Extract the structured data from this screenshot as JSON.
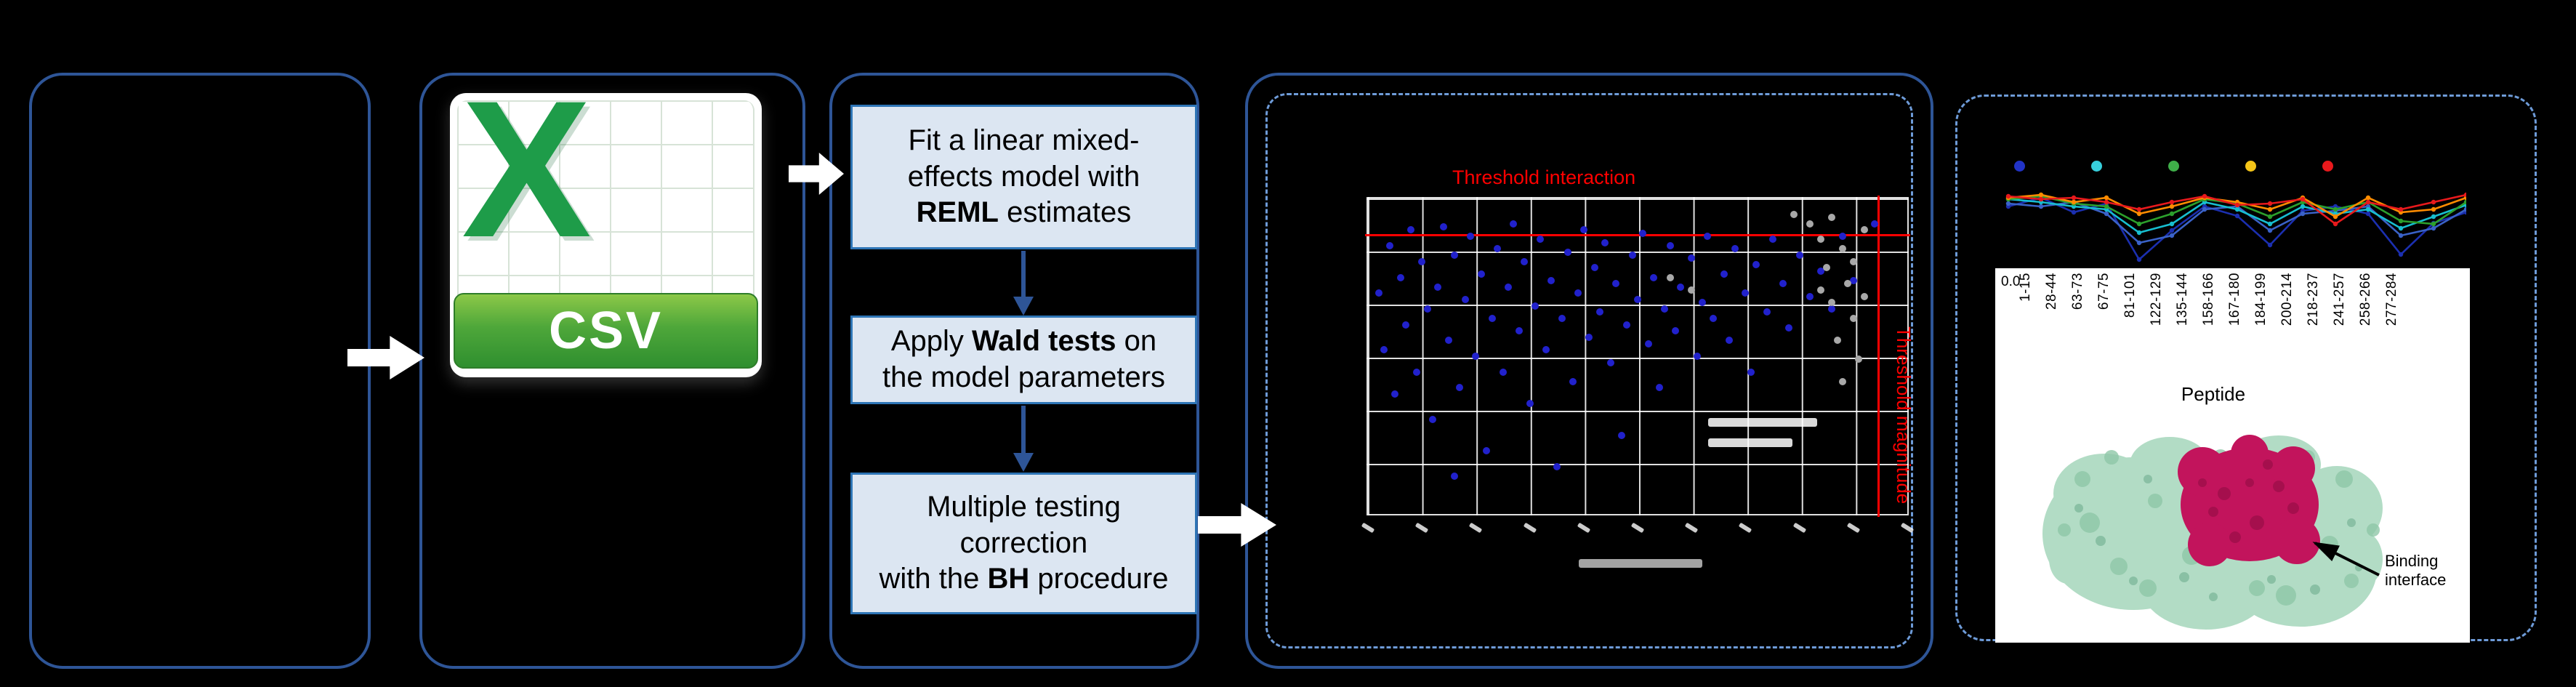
{
  "colors": {
    "background": "#000000",
    "stage_border": "#2E5597",
    "dashed_border": "#6E9BD8",
    "process_fill": "#DCE6F2",
    "process_border": "#2E75B6",
    "flow_arrow": "#FFFFFF",
    "threshold_red": "#FF0000",
    "scatter_blue": "#2121CC",
    "scatter_gray": "#A8A8A8",
    "csv_green": "#1E9C49",
    "protein_green": "#A9D5BC",
    "binding_magenta": "#C2145C"
  },
  "csv_icon": {
    "logo_letter": "X",
    "format_label": "CSV"
  },
  "steps": {
    "reml": {
      "l1": "Fit a linear mixed-",
      "l2": "effects model with",
      "l3_bold": "REML",
      "l3_rest": " estimates"
    },
    "wald": {
      "l1_pre": "Apply ",
      "l1_bold": "Wald tests",
      "l1_post": " on",
      "l2": "the model parameters"
    },
    "bh": {
      "l1": "Multiple testing",
      "l2": "correction",
      "l3_pre": "with the ",
      "l3_bold": "BH",
      "l3_post": " procedure"
    }
  },
  "chart_data": [
    {
      "type": "scatter",
      "title": "",
      "threshold_h_label": "Threshold interaction",
      "threshold_v_label": "Threshold magnitude",
      "threshold_h_frac": 0.112,
      "threshold_v_frac": 0.945,
      "grid_cols": 10,
      "grid_rows": 6,
      "series": [
        {
          "name": "blue-points",
          "color": "#2121CC",
          "points_pct": [
            [
              2,
              30
            ],
            [
              3,
              48
            ],
            [
              4,
              15
            ],
            [
              5,
              62
            ],
            [
              6,
              25
            ],
            [
              7,
              40
            ],
            [
              8,
              10
            ],
            [
              9,
              55
            ],
            [
              10,
              20
            ],
            [
              11,
              35
            ],
            [
              12,
              70
            ],
            [
              13,
              28
            ],
            [
              14,
              9
            ],
            [
              15,
              45
            ],
            [
              16,
              18
            ],
            [
              17,
              60
            ],
            [
              18,
              32
            ],
            [
              19,
              12
            ],
            [
              20,
              50
            ],
            [
              21,
              24
            ],
            [
              22,
              80
            ],
            [
              23,
              38
            ],
            [
              24,
              16
            ],
            [
              25,
              55
            ],
            [
              26,
              28
            ],
            [
              27,
              8
            ],
            [
              28,
              42
            ],
            [
              29,
              20
            ],
            [
              30,
              65
            ],
            [
              31,
              34
            ],
            [
              32,
              13
            ],
            [
              33,
              48
            ],
            [
              34,
              26
            ],
            [
              35,
              85
            ],
            [
              36,
              38
            ],
            [
              37,
              17
            ],
            [
              38,
              58
            ],
            [
              39,
              30
            ],
            [
              40,
              10
            ],
            [
              41,
              44
            ],
            [
              42,
              22
            ],
            [
              43,
              36
            ],
            [
              44,
              14
            ],
            [
              45,
              52
            ],
            [
              46,
              27
            ],
            [
              47,
              75
            ],
            [
              48,
              40
            ],
            [
              49,
              18
            ],
            [
              50,
              32
            ],
            [
              51,
              11
            ],
            [
              52,
              46
            ],
            [
              53,
              25
            ],
            [
              54,
              60
            ],
            [
              55,
              35
            ],
            [
              56,
              15
            ],
            [
              57,
              42
            ],
            [
              58,
              28
            ],
            [
              60,
              19
            ],
            [
              61,
              50
            ],
            [
              62,
              33
            ],
            [
              63,
              12
            ],
            [
              64,
              38
            ],
            [
              66,
              24
            ],
            [
              67,
              45
            ],
            [
              68,
              16
            ],
            [
              70,
              30
            ],
            [
              71,
              55
            ],
            [
              72,
              21
            ],
            [
              74,
              36
            ],
            [
              75,
              13
            ],
            [
              77,
              27
            ],
            [
              78,
              41
            ],
            [
              80,
              18
            ],
            [
              82,
              31
            ],
            [
              84,
              23
            ],
            [
              86,
              35
            ],
            [
              88,
              12
            ],
            [
              90,
              26
            ],
            [
              94,
              8
            ],
            [
              16,
              88
            ]
          ]
        },
        {
          "name": "gray-points",
          "color": "#A8A8A8",
          "points_pct": [
            [
              79,
              5
            ],
            [
              82,
              8
            ],
            [
              86,
              6
            ],
            [
              84,
              13
            ],
            [
              88,
              16
            ],
            [
              85,
              22
            ],
            [
              89,
              27
            ],
            [
              86,
              33
            ],
            [
              90,
              38
            ],
            [
              87,
              45
            ],
            [
              91,
              51
            ],
            [
              88,
              58
            ],
            [
              84,
              29
            ],
            [
              90,
              20
            ],
            [
              92,
              10
            ],
            [
              56,
              25
            ],
            [
              60,
              29
            ],
            [
              92,
              31
            ]
          ]
        }
      ]
    },
    {
      "type": "line",
      "categories": [
        "1-15",
        "28-44",
        "63-73",
        "67-75",
        "81-101",
        "122-129",
        "135-144",
        "158-166",
        "167-180",
        "184-199",
        "200-214",
        "218-237",
        "241-257",
        "258-266",
        "277-284"
      ],
      "xlabel": "Peptide",
      "visible_y_tick": "0.0",
      "legend_dot_colors": [
        "#2133C7",
        "#37CFDC",
        "#3FAE49",
        "#F5C518",
        "#E8191C"
      ],
      "series": [
        {
          "name": "series-1",
          "color": "#1B2FB0",
          "values": [
            0.22,
            0.1,
            0.3,
            0.18,
            0.95,
            0.55,
            0.22,
            0.35,
            0.75,
            0.28,
            0.22,
            0.32,
            0.88,
            0.45,
            0.3
          ]
        },
        {
          "name": "series-2",
          "color": "#3A62C8",
          "values": [
            0.18,
            0.22,
            0.16,
            0.32,
            0.72,
            0.62,
            0.26,
            0.22,
            0.55,
            0.32,
            0.28,
            0.22,
            0.62,
            0.52,
            0.26
          ]
        },
        {
          "name": "series-3",
          "color": "#17BECF",
          "values": [
            0.12,
            0.16,
            0.22,
            0.26,
            0.58,
            0.46,
            0.16,
            0.26,
            0.46,
            0.22,
            0.32,
            0.26,
            0.52,
            0.36,
            0.2
          ]
        },
        {
          "name": "series-4",
          "color": "#2CA02C",
          "values": [
            0.12,
            0.08,
            0.18,
            0.22,
            0.46,
            0.32,
            0.12,
            0.18,
            0.36,
            0.16,
            0.26,
            0.16,
            0.42,
            0.46,
            0.16
          ]
        },
        {
          "name": "series-5",
          "color": "#FF8C00",
          "values": [
            0.1,
            0.06,
            0.16,
            0.1,
            0.32,
            0.22,
            0.1,
            0.16,
            0.26,
            0.1,
            0.36,
            0.1,
            0.3,
            0.26,
            0.1
          ]
        },
        {
          "name": "series-6",
          "color": "#E8191C",
          "values": [
            0.08,
            0.12,
            0.1,
            0.16,
            0.26,
            0.16,
            0.08,
            0.2,
            0.18,
            0.12,
            0.46,
            0.16,
            0.26,
            0.16,
            0.06
          ]
        }
      ]
    }
  ],
  "structure_panel": {
    "annotation_l1": "Binding",
    "annotation_l2": "interface"
  }
}
